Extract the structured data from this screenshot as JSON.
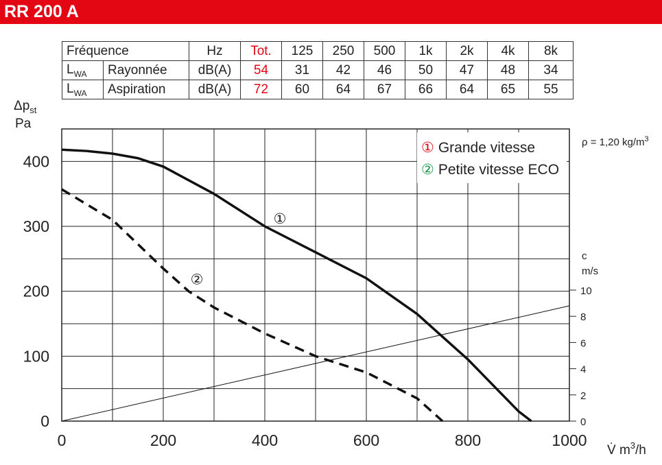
{
  "header": {
    "title": "RR 200 A"
  },
  "table": {
    "header": [
      "Fréquence",
      "Hz",
      "Tot.",
      "125",
      "250",
      "500",
      "1k",
      "2k",
      "4k",
      "8k"
    ],
    "rows": [
      {
        "label": "L",
        "label_sub": "WA",
        "name": "Rayonnée",
        "unit": "dB(A)",
        "total": 54,
        "values": [
          31,
          42,
          46,
          50,
          47,
          48,
          34
        ]
      },
      {
        "label": "L",
        "label_sub": "WA",
        "name": "Aspiration",
        "unit": "dB(A)",
        "total": 72,
        "values": [
          60,
          64,
          67,
          66,
          64,
          65,
          55
        ]
      }
    ],
    "total_color": "#e30613"
  },
  "chart_data": {
    "type": "line",
    "ylabel": "Δp",
    "ylabel_sub": "st",
    "ylabel_unit": "Pa",
    "xlabel": "V̇ m",
    "xlabel_sup": "3",
    "xlabel_end": "/h",
    "y2label": "c",
    "y2label_unit": "m/s",
    "annotation": "ρ = 1,20 kg/m",
    "annotation_sup": "3",
    "xlim": [
      0,
      1000
    ],
    "xticks": [
      0,
      200,
      400,
      600,
      800,
      1000
    ],
    "xminor": [
      100,
      300,
      500,
      700,
      900
    ],
    "ylim": [
      0,
      450
    ],
    "yticks": [
      0,
      100,
      200,
      300,
      400
    ],
    "yminor": [
      50,
      150,
      250,
      350
    ],
    "y2lim": [
      0,
      22.3
    ],
    "y2ticks": [
      0,
      2,
      4,
      6,
      8,
      10
    ],
    "grid": true,
    "legend": "upper right",
    "series": [
      {
        "name": "Grande vitesse",
        "marker": "①",
        "marker_color": "#e30613",
        "color": "#111",
        "dash": false,
        "x": [
          0,
          50,
          100,
          150,
          200,
          300,
          400,
          500,
          600,
          700,
          750,
          800,
          850,
          900,
          925
        ],
        "values": [
          418,
          416,
          412,
          405,
          392,
          350,
          300,
          260,
          220,
          165,
          130,
          95,
          55,
          15,
          0
        ]
      },
      {
        "name": "Petite vitesse ECO",
        "marker": "②",
        "marker_color": "#1a9a4a",
        "color": "#111",
        "dash": true,
        "x": [
          0,
          100,
          200,
          250,
          300,
          400,
          500,
          600,
          700,
          750
        ],
        "values": [
          357,
          310,
          235,
          200,
          175,
          135,
          100,
          75,
          35,
          0
        ]
      },
      {
        "axis": "y2",
        "color": "#111",
        "x": [
          0,
          1000
        ],
        "values": [
          0,
          8.8
        ]
      }
    ]
  }
}
